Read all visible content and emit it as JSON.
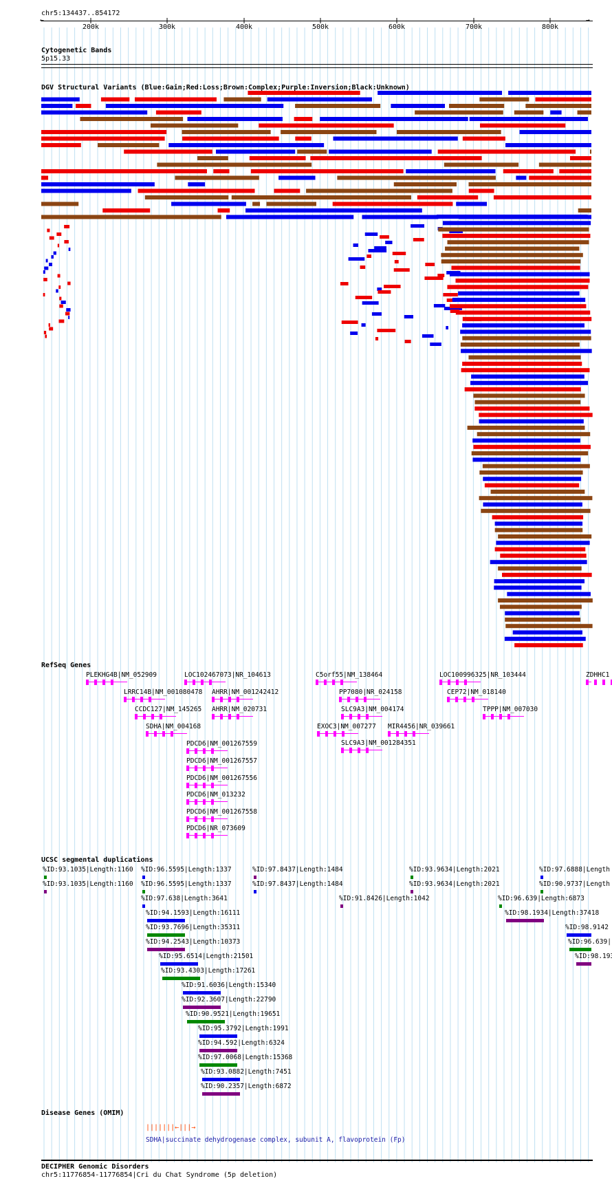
{
  "location": "chr5:134437..854172",
  "ruler": {
    "ticks": [
      "200k",
      "300k",
      "400k",
      "500k",
      "600k",
      "700k",
      "800k"
    ]
  },
  "tracks": {
    "cytoband": {
      "title": "Cytogenetic Bands",
      "band": "5p15.33"
    },
    "dgv": {
      "title": "DGV Structural Variants (Blue:Gain;Red:Loss;Brown:Complex;Purple:Inversion;Black:Unknown)",
      "colors": {
        "gain": "#0000ee",
        "loss": "#ee0000",
        "complex": "#8b4513"
      }
    },
    "refseq": {
      "title": "RefSeq Genes",
      "genes": [
        "PLEKHG4B|NM_052909",
        "LOC102467073|NR_104613",
        "C5orf55|NM_138464",
        "LOC100996325|NR_103444",
        "ZDHHC1",
        "LRRC14B|NM_001080478",
        "AHRR|NM_001242412",
        "PP7080|NR_024158",
        "CEP72|NM_018140",
        "CCDC127|NM_145265",
        "AHRR|NM_020731",
        "SLC9A3|NM_004174",
        "TPPP|NM_007030",
        "SDHA|NM_004168",
        "EXOC3|NM_007277",
        "MIR4456|NR_039661",
        "SLC9A3|NM_001284351",
        "PDCD6|NM_001267559",
        "PDCD6|NM_001267557",
        "PDCD6|NM_001267556",
        "PDCD6|NM_013232",
        "PDCD6|NM_001267558",
        "PDCD6|NR_073609"
      ]
    },
    "segdup": {
      "title": "UCSC segmental duplications",
      "items": [
        "%ID:93.1035|Length:1160",
        "%ID:96.5595|Length:1337",
        "%ID:97.8437|Length:1484",
        "%ID:93.9634|Length:2021",
        "%ID:97.6888|Length",
        "%ID:93.1035|Length:1160",
        "%ID:96.5595|Length:1337",
        "%ID:97.8437|Length:1484",
        "%ID:93.9634|Length:2021",
        "%ID:90.9737|Length",
        "%ID:97.638|Length:3641",
        "%ID:91.8426|Length:1042",
        "%ID:96.639|Length:6873",
        "%ID:94.1593|Length:16111",
        "%ID:98.1934|Length:37418",
        "%ID:93.7696|Length:35311",
        "%ID:98.9142",
        "%ID:94.2543|Length:10373",
        "%ID:96.639|",
        "%ID:95.6514|Length:21501",
        "%ID:98.193",
        "%ID:93.4303|Length:17261",
        "%ID:91.6036|Length:15340",
        "%ID:92.3607|Length:22790",
        "%ID:90.9521|Length:19651",
        "%ID:95.3792|Length:1991",
        "%ID:94.592|Length:6324",
        "%ID:97.0068|Length:15368",
        "%ID:93.0882|Length:7451",
        "%ID:90.2357|Length:6872"
      ]
    },
    "omim": {
      "title": "Disease Genes (OMIM)",
      "entry": "SDHA|succinate dehydrogenase complex, subunit A, flavoprotein (Fp)"
    },
    "decipher": {
      "title": "DECIPHER Genomic Disorders",
      "entry": "chr5:11776854-11776854|Cri du Chat Syndrome (5p deletion)"
    }
  }
}
